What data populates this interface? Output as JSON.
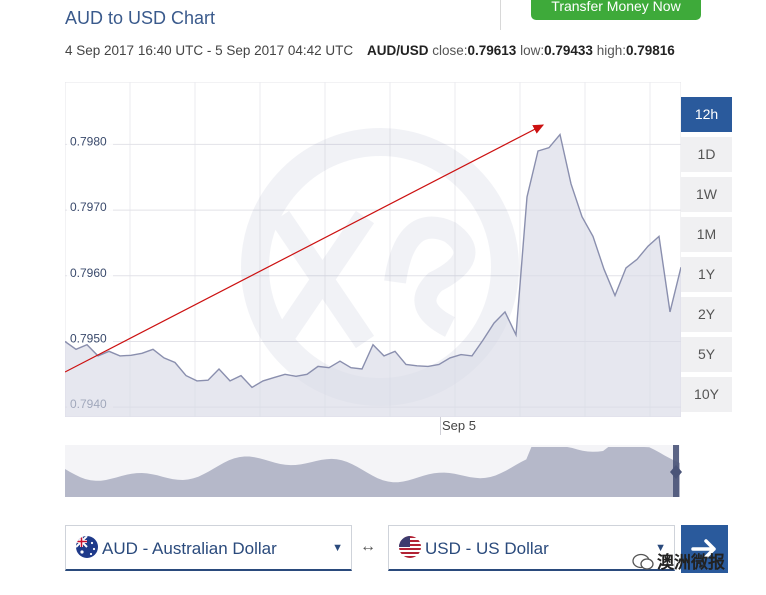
{
  "header": {
    "title": "AUD to USD Chart",
    "transfer_button": "Transfer Money Now"
  },
  "summary": {
    "range": "4 Sep 2017 16:40 UTC - 5 Sep 2017 04:42 UTC",
    "pair": "AUD/USD",
    "close_label": "close:",
    "close_value": "0.79613",
    "low_label": "low:",
    "low_value": "0.79433",
    "high_label": "high:",
    "high_value": "0.79816"
  },
  "range_buttons": [
    "12h",
    "1D",
    "1W",
    "1M",
    "1Y",
    "2Y",
    "5Y",
    "10Y"
  ],
  "active_range": "12h",
  "converter": {
    "from_label": "AUD - Australian Dollar",
    "to_label": "USD - US Dollar",
    "swap_symbol": "↔",
    "go_symbol": "→"
  },
  "watermark": "澳洲微报",
  "colors": {
    "accent": "#2a5a9c",
    "green_button": "#3eaa3a",
    "series_line": "#8a8fae",
    "series_fill": "#d8dae6",
    "arrow": "#cc1111"
  },
  "chart_data": {
    "type": "area",
    "xlabel": "",
    "ylabel": "",
    "x_ticks": [
      "Sep 5"
    ],
    "y_ticks": [
      0.794,
      0.795,
      0.796,
      0.797,
      0.798
    ],
    "y_tick_labels": [
      "0.7940",
      "0.7950",
      "0.7960",
      "0.7970",
      "0.7980"
    ],
    "ylim": [
      0.79385,
      0.79895
    ],
    "grid": true,
    "series": [
      {
        "values": [
          0.795,
          0.79488,
          0.79495,
          0.79478,
          0.79485,
          0.79478,
          0.79479,
          0.79482,
          0.79488,
          0.79475,
          0.79468,
          0.79448,
          0.7944,
          0.79441,
          0.79458,
          0.7944,
          0.79448,
          0.7943,
          0.7944,
          0.79445,
          0.7945,
          0.79447,
          0.7945,
          0.79462,
          0.7946,
          0.7947,
          0.7946,
          0.79458,
          0.79495,
          0.79478,
          0.79485,
          0.79465,
          0.79463,
          0.79462,
          0.79465,
          0.79475,
          0.7948,
          0.79478,
          0.79502,
          0.79528,
          0.79545,
          0.7951,
          0.7972,
          0.7979,
          0.79795,
          0.79815,
          0.7974,
          0.7969,
          0.7966,
          0.7961,
          0.7957,
          0.79612,
          0.79625,
          0.79645,
          0.7966,
          0.79545,
          0.79613
        ]
      }
    ],
    "annotation": "upward trend arrow"
  }
}
